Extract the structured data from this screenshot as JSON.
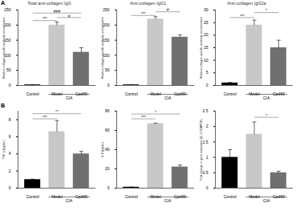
{
  "chart_data": [
    {
      "type": "bar",
      "panel": "A",
      "title": "Total anti-collagen IgG",
      "y_label": "Relative collagen-specific antibody concentration",
      "categories": [
        "Control",
        "Model",
        "Cpd69"
      ],
      "values": [
        2,
        200,
        110
      ],
      "errors": [
        0.5,
        10,
        15
      ],
      "colors": [
        "#000000",
        "#c8c8c8",
        "#707070"
      ],
      "ylim": [
        0,
        250
      ],
      "yticks": [
        0,
        50,
        100,
        150,
        200,
        250
      ],
      "significance": [
        {
          "from": 0,
          "to": 1,
          "y": 215,
          "label": "***"
        },
        {
          "from": 1,
          "to": 2,
          "y": 225,
          "label": "#"
        },
        {
          "from": 0,
          "to": 2,
          "y": 240,
          "label": "###"
        }
      ],
      "group_label": "CIA",
      "group_categories": [
        "Model",
        "Cpd69"
      ]
    },
    {
      "type": "bar",
      "title": "Anti-collagen IgG1",
      "y_label": "Relative collagen-specific antibody concentration",
      "categories": [
        "Control",
        "Model",
        "Cpd69"
      ],
      "values": [
        2,
        220,
        160
      ],
      "errors": [
        0.5,
        8,
        8
      ],
      "colors": [
        "#000000",
        "#c8c8c8",
        "#707070"
      ],
      "ylim": [
        0,
        250
      ],
      "yticks": [
        0,
        50,
        100,
        150,
        200,
        250
      ],
      "significance": [
        {
          "from": 0,
          "to": 1,
          "y": 232,
          "label": "***"
        },
        {
          "from": 1,
          "to": 2,
          "y": 244,
          "label": "#"
        }
      ],
      "group_label": "CIA",
      "group_categories": [
        "Model",
        "Cpd69"
      ]
    },
    {
      "type": "bar",
      "title": "Anti-collagen IgG2a",
      "y_label": "Relative collagen-specific antibody concentration",
      "categories": [
        "Control",
        "Model",
        "Cpd69"
      ],
      "values": [
        1,
        24,
        15
      ],
      "errors": [
        0.2,
        2,
        3
      ],
      "colors": [
        "#000000",
        "#c8c8c8",
        "#707070"
      ],
      "ylim": [
        0,
        30
      ],
      "yticks": [
        0,
        5,
        10,
        15,
        20,
        25,
        30
      ],
      "significance": [
        {
          "from": 0,
          "to": 1,
          "y": 27,
          "label": "***"
        },
        {
          "from": 1,
          "to": 2,
          "y": 29,
          "label": "*"
        }
      ],
      "group_label": "CIA",
      "group_categories": [
        "Model",
        "Cpd69"
      ]
    },
    {
      "type": "bar",
      "panel": "B",
      "y_label": "TNF-α (pg/mL)",
      "categories": [
        "Control",
        "Model",
        "Cpd69"
      ],
      "values": [
        1,
        6.6,
        4.0
      ],
      "errors": [
        0.05,
        1.3,
        0.3
      ],
      "colors": [
        "#000000",
        "#c8c8c8",
        "#707070"
      ],
      "ylim": [
        0,
        9
      ],
      "yticks": [
        0,
        2,
        4,
        6,
        8
      ],
      "significance": [
        {
          "from": 0,
          "to": 1,
          "y": 8.1,
          "label": "***"
        },
        {
          "from": 0,
          "to": 2,
          "y": 8.7,
          "label": "**"
        }
      ],
      "group_label": "CIA",
      "group_categories": [
        "Model",
        "Cpd69"
      ]
    },
    {
      "type": "bar",
      "y_label": "IL-6 (pg/mL)",
      "categories": [
        "Control",
        "Model",
        "Cpd69"
      ],
      "values": [
        1,
        67,
        22
      ],
      "errors": [
        0.2,
        0.5,
        2
      ],
      "colors": [
        "#000000",
        "#c8c8c8",
        "#707070"
      ],
      "ylim": [
        0,
        80
      ],
      "yticks": [
        0,
        20,
        40,
        60,
        80
      ],
      "significance": [
        {
          "from": 0,
          "to": 1,
          "y": 72,
          "label": "***"
        },
        {
          "from": 0,
          "to": 2,
          "y": 77,
          "label": "*"
        }
      ],
      "group_label": "CIA",
      "group_categories": [
        "Model",
        "Cpd69"
      ]
    },
    {
      "type": "bar",
      "y_label": "Fold change in gene expression (IL-17/GAPDH)",
      "categories": [
        "Control",
        "Model",
        "Cpd69"
      ],
      "values": [
        1.0,
        1.75,
        0.5
      ],
      "errors": [
        0.25,
        0.4,
        0.05
      ],
      "colors": [
        "#000000",
        "#c8c8c8",
        "#707070"
      ],
      "ylim": [
        0,
        2.5
      ],
      "yticks": [
        0,
        0.5,
        1,
        1.5,
        2,
        2.5
      ],
      "significance": [
        {
          "from": 1,
          "to": 2,
          "y": 2.3,
          "label": "*"
        }
      ],
      "group_label": "CIA",
      "group_categories": [
        "Model",
        "Cpd69"
      ]
    }
  ]
}
